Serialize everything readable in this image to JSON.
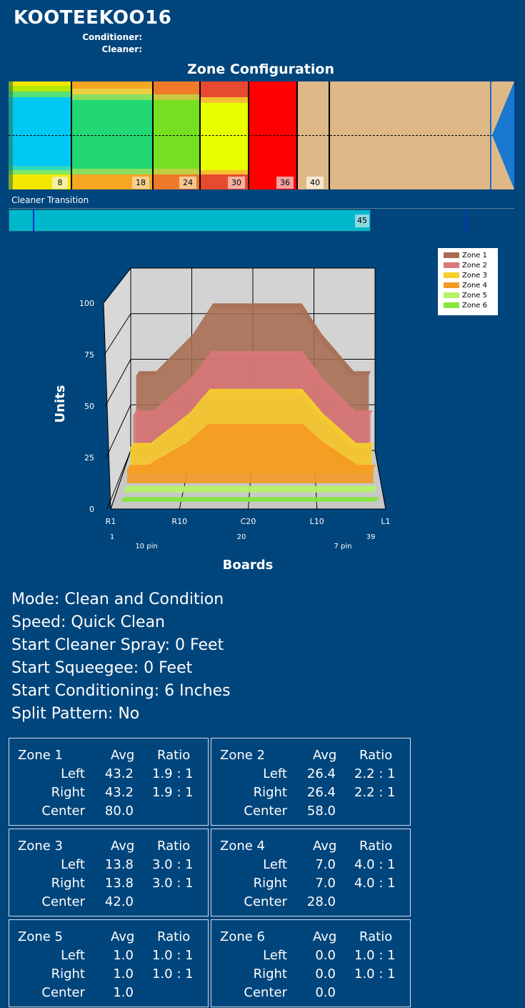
{
  "header": {
    "title": "KOOTEEKOO16",
    "conditioner_label": "Conditioner:",
    "cleaner_label": "Cleaner:"
  },
  "zone_config": {
    "title": "Zone Configuration",
    "markers": [
      "8",
      "18",
      "24",
      "30",
      "36",
      "40"
    ],
    "cleaner_transition_label": "Cleaner Transition",
    "cleaner_transition_value": "45"
  },
  "chart_data": {
    "type": "area",
    "title": "",
    "xlabel": "Boards",
    "ylabel": "Units",
    "ylim": [
      0,
      100
    ],
    "y_ticks": [
      "0",
      "25",
      "50",
      "75",
      "100"
    ],
    "x_tick_labels": [
      "R1",
      "R10",
      "C20",
      "L10",
      "L1"
    ],
    "x_sub_labels": [
      "1",
      "10 pin",
      "20",
      "7 pin",
      "39"
    ],
    "legend_position": "top-right",
    "series": [
      {
        "name": "Zone 1",
        "color": "#a86d52",
        "center": 80,
        "edge": 43.2
      },
      {
        "name": "Zone 2",
        "color": "#d97779",
        "center": 58,
        "edge": 26.4
      },
      {
        "name": "Zone 3",
        "color": "#f5cf2b",
        "center": 42,
        "edge": 13.8
      },
      {
        "name": "Zone 4",
        "color": "#f59a22",
        "center": 28,
        "edge": 7
      },
      {
        "name": "Zone 5",
        "color": "#b7f26b",
        "center": 1,
        "edge": 1
      },
      {
        "name": "Zone 6",
        "color": "#86e63a",
        "center": 0,
        "edge": 0
      }
    ]
  },
  "settings": [
    "Mode: Clean and Condition",
    "Speed: Quick Clean",
    "Start Cleaner Spray: 0 Feet",
    "Start Squeegee: 0 Feet",
    "Start Conditioning: 6 Inches",
    "Split Pattern: No"
  ],
  "zones": [
    {
      "name": "Zone 1",
      "avg_h": "Avg",
      "ratio_h": "Ratio",
      "left_l": "Left",
      "right_l": "Right",
      "center_l": "Center",
      "left_avg": "43.2",
      "left_ratio": "1.9 : 1",
      "right_avg": "43.2",
      "right_ratio": "1.9 : 1",
      "center_avg": "80.0"
    },
    {
      "name": "Zone 2",
      "avg_h": "Avg",
      "ratio_h": "Ratio",
      "left_l": "Left",
      "right_l": "Right",
      "center_l": "Center",
      "left_avg": "26.4",
      "left_ratio": "2.2 : 1",
      "right_avg": "26.4",
      "right_ratio": "2.2 : 1",
      "center_avg": "58.0"
    },
    {
      "name": "Zone 3",
      "avg_h": "Avg",
      "ratio_h": "Ratio",
      "left_l": "Left",
      "right_l": "Right",
      "center_l": "Center",
      "left_avg": "13.8",
      "left_ratio": "3.0 : 1",
      "right_avg": "13.8",
      "right_ratio": "3.0 : 1",
      "center_avg": "42.0"
    },
    {
      "name": "Zone 4",
      "avg_h": "Avg",
      "ratio_h": "Ratio",
      "left_l": "Left",
      "right_l": "Right",
      "center_l": "Center",
      "left_avg": "7.0",
      "left_ratio": "4.0 : 1",
      "right_avg": "7.0",
      "right_ratio": "4.0 : 1",
      "center_avg": "28.0"
    },
    {
      "name": "Zone 5",
      "avg_h": "Avg",
      "ratio_h": "Ratio",
      "left_l": "Left",
      "right_l": "Right",
      "center_l": "Center",
      "left_avg": "1.0",
      "left_ratio": "1.0 : 1",
      "right_avg": "1.0",
      "right_ratio": "1.0 : 1",
      "center_avg": "1.0"
    },
    {
      "name": "Zone 6",
      "avg_h": "Avg",
      "ratio_h": "Ratio",
      "left_l": "Left",
      "right_l": "Right",
      "center_l": "Center",
      "left_avg": "0.0",
      "left_ratio": "1.0 : 1",
      "right_avg": "0.0",
      "right_ratio": "1.0 : 1",
      "center_avg": "0.0"
    }
  ]
}
